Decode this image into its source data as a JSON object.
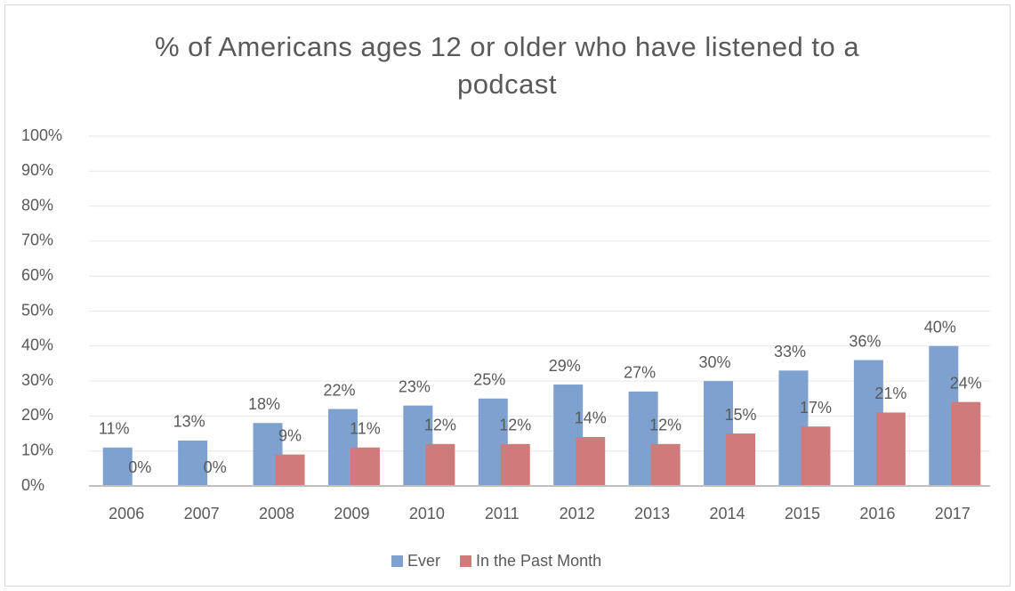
{
  "chart_data": {
    "type": "bar",
    "title": "% of Americans ages 12 or older who have listened to a podcast",
    "categories": [
      "2006",
      "2007",
      "2008",
      "2009",
      "2010",
      "2011",
      "2012",
      "2013",
      "2014",
      "2015",
      "2016",
      "2017"
    ],
    "series": [
      {
        "name": "Ever",
        "color": "#7ea1cf",
        "values": [
          11,
          13,
          18,
          22,
          23,
          25,
          29,
          27,
          30,
          33,
          36,
          40
        ],
        "value_labels": [
          "11%",
          "13%",
          "18%",
          "22%",
          "23%",
          "25%",
          "29%",
          "27%",
          "30%",
          "33%",
          "36%",
          "40%"
        ]
      },
      {
        "name": "In the Past Month",
        "color": "#d07b7b",
        "values": [
          0,
          0,
          9,
          11,
          12,
          12,
          14,
          12,
          15,
          17,
          21,
          24
        ],
        "value_labels": [
          "0%",
          "0%",
          "9%",
          "11%",
          "12%",
          "12%",
          "14%",
          "12%",
          "15%",
          "17%",
          "21%",
          "24%"
        ]
      }
    ],
    "ylim": [
      0,
      100
    ],
    "yticks": [
      {
        "value": 0,
        "label": "0%"
      },
      {
        "value": 10,
        "label": "10%"
      },
      {
        "value": 20,
        "label": "20%"
      },
      {
        "value": 30,
        "label": "30%"
      },
      {
        "value": 40,
        "label": "40%"
      },
      {
        "value": 50,
        "label": "50%"
      },
      {
        "value": 60,
        "label": "60%"
      },
      {
        "value": 70,
        "label": "70%"
      },
      {
        "value": 80,
        "label": "80%"
      },
      {
        "value": 90,
        "label": "90%"
      },
      {
        "value": 100,
        "label": "100%"
      }
    ],
    "grid": true,
    "legend": "bottom"
  }
}
